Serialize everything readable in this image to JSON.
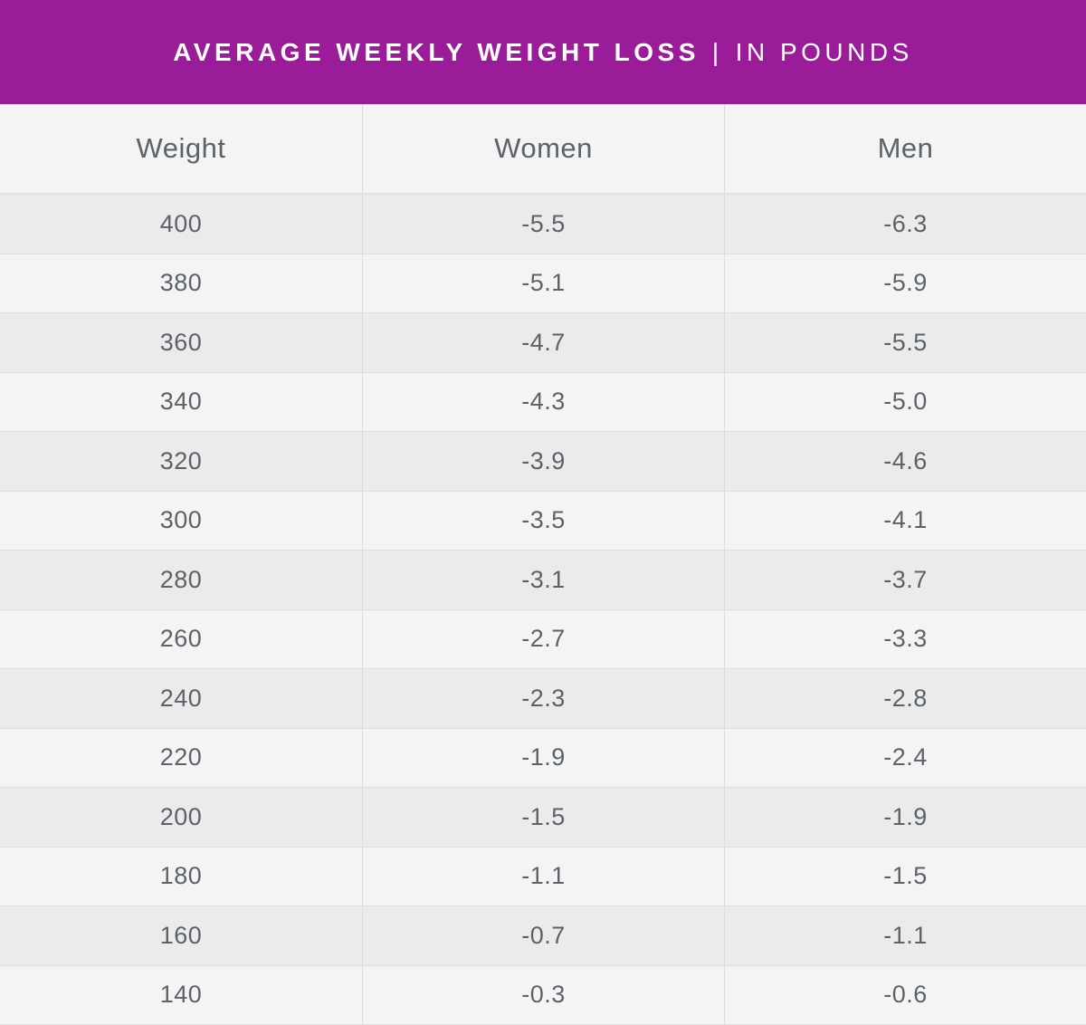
{
  "chart_data": {
    "type": "table",
    "title": "AVERAGE WEEKLY WEIGHT LOSS",
    "subtitle": "IN POUNDS",
    "separator": "|",
    "colors": {
      "header_bg": "#9b1c98",
      "header_text": "#ffffff",
      "row_alt": "#eaebea",
      "row_base": "#f4f4f4",
      "text": "#5b6369"
    },
    "columns": [
      "Weight",
      "Women",
      "Men"
    ],
    "rows": [
      [
        "400",
        "-5.5",
        "-6.3"
      ],
      [
        "380",
        "-5.1",
        "-5.9"
      ],
      [
        "360",
        "-4.7",
        "-5.5"
      ],
      [
        "340",
        "-4.3",
        "-5.0"
      ],
      [
        "320",
        "-3.9",
        "-4.6"
      ],
      [
        "300",
        "-3.5",
        "-4.1"
      ],
      [
        "280",
        "-3.1",
        "-3.7"
      ],
      [
        "260",
        "-2.7",
        "-3.3"
      ],
      [
        "240",
        "-2.3",
        "-2.8"
      ],
      [
        "220",
        "-1.9",
        "-2.4"
      ],
      [
        "200",
        "-1.5",
        "-1.9"
      ],
      [
        "180",
        "-1.1",
        "-1.5"
      ],
      [
        "160",
        "-0.7",
        "-1.1"
      ],
      [
        "140",
        "-0.3",
        "-0.6"
      ]
    ]
  }
}
